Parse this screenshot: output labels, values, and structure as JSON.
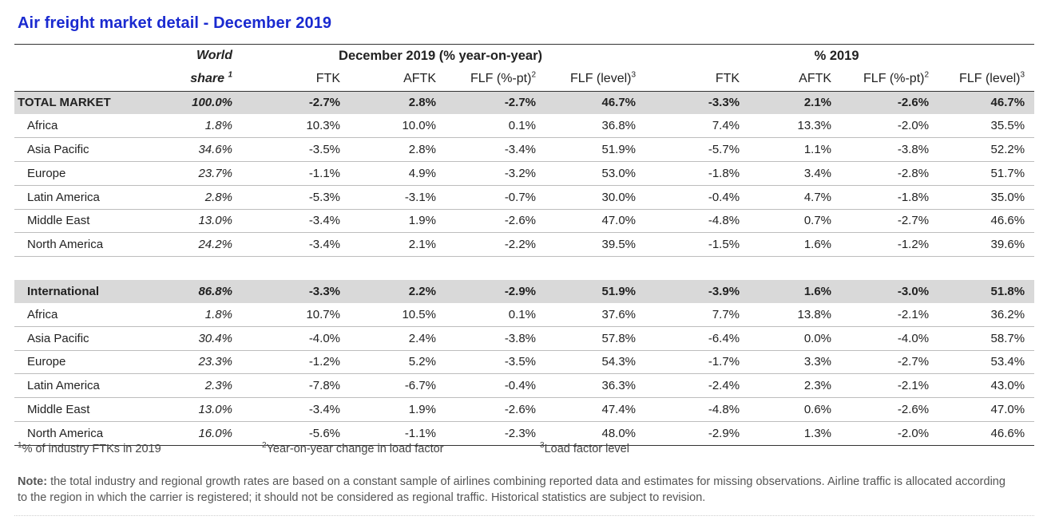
{
  "title": "Air freight market detail - December 2019",
  "header": {
    "world": "World",
    "share": "share",
    "share_sup": "1",
    "group1": "December 2019 (% year-on-year)",
    "group2": "% 2019",
    "cols": [
      "FTK",
      "AFTK",
      "FLF (%-pt)",
      "FLF (level)",
      "FTK",
      "AFTK",
      "FLF (%-pt)",
      "FLF (level)"
    ],
    "col_sups": [
      "",
      "",
      "2",
      "3",
      "",
      "",
      "2",
      "3"
    ]
  },
  "total": {
    "label": "TOTAL MARKET",
    "share": "100.0%",
    "v": [
      "-2.7%",
      "2.8%",
      "-2.7%",
      "46.7%",
      "-3.3%",
      "2.1%",
      "-2.6%",
      "46.7%"
    ]
  },
  "regions": [
    {
      "label": "Africa",
      "share": "1.8%",
      "v": [
        "10.3%",
        "10.0%",
        "0.1%",
        "36.8%",
        "7.4%",
        "13.3%",
        "-2.0%",
        "35.5%"
      ]
    },
    {
      "label": "Asia Pacific",
      "share": "34.6%",
      "v": [
        "-3.5%",
        "2.8%",
        "-3.4%",
        "51.9%",
        "-5.7%",
        "1.1%",
        "-3.8%",
        "52.2%"
      ]
    },
    {
      "label": "Europe",
      "share": "23.7%",
      "v": [
        "-1.1%",
        "4.9%",
        "-3.2%",
        "53.0%",
        "-1.8%",
        "3.4%",
        "-2.8%",
        "51.7%"
      ]
    },
    {
      "label": "Latin America",
      "share": "2.8%",
      "v": [
        "-5.3%",
        "-3.1%",
        "-0.7%",
        "30.0%",
        "-0.4%",
        "4.7%",
        "-1.8%",
        "35.0%"
      ]
    },
    {
      "label": "Middle East",
      "share": "13.0%",
      "v": [
        "-3.4%",
        "1.9%",
        "-2.6%",
        "47.0%",
        "-4.8%",
        "0.7%",
        "-2.7%",
        "46.6%"
      ]
    },
    {
      "label": "North America",
      "share": "24.2%",
      "v": [
        "-3.4%",
        "2.1%",
        "-2.2%",
        "39.5%",
        "-1.5%",
        "1.6%",
        "-1.2%",
        "39.6%"
      ]
    }
  ],
  "international": {
    "label": "International",
    "share": "86.8%",
    "v": [
      "-3.3%",
      "2.2%",
      "-2.9%",
      "51.9%",
      "-3.9%",
      "1.6%",
      "-3.0%",
      "51.8%"
    ]
  },
  "intl_regions": [
    {
      "label": "Africa",
      "share": "1.8%",
      "v": [
        "10.7%",
        "10.5%",
        "0.1%",
        "37.6%",
        "7.7%",
        "13.8%",
        "-2.1%",
        "36.2%"
      ]
    },
    {
      "label": "Asia Pacific",
      "share": "30.4%",
      "v": [
        "-4.0%",
        "2.4%",
        "-3.8%",
        "57.8%",
        "-6.4%",
        "0.0%",
        "-4.0%",
        "58.7%"
      ]
    },
    {
      "label": "Europe",
      "share": "23.3%",
      "v": [
        "-1.2%",
        "5.2%",
        "-3.5%",
        "54.3%",
        "-1.7%",
        "3.3%",
        "-2.7%",
        "53.4%"
      ]
    },
    {
      "label": "Latin America",
      "share": "2.3%",
      "v": [
        "-7.8%",
        "-6.7%",
        "-0.4%",
        "36.3%",
        "-2.4%",
        "2.3%",
        "-2.1%",
        "43.0%"
      ]
    },
    {
      "label": "Middle East",
      "share": "13.0%",
      "v": [
        "-3.4%",
        "1.9%",
        "-2.6%",
        "47.4%",
        "-4.8%",
        "0.6%",
        "-2.6%",
        "47.0%"
      ]
    },
    {
      "label": "North America",
      "share": "16.0%",
      "v": [
        "-5.6%",
        "-1.1%",
        "-2.3%",
        "48.0%",
        "-2.9%",
        "1.3%",
        "-2.0%",
        "46.6%"
      ]
    }
  ],
  "footnotes": [
    {
      "sup": "1",
      "text": "% of industry FTKs in 2019"
    },
    {
      "sup": "2",
      "text": "Year-on-year change in load factor"
    },
    {
      "sup": "3",
      "text": "Load factor level"
    }
  ],
  "note": {
    "label": "Note:",
    "text": " the total industry and regional growth rates are based on a constant sample of airlines combining reported data and estimates for missing observations. Airline traffic is allocated according to the region in which the carrier is registered; it should not be considered as regional traffic. Historical statistics are subject to revision."
  }
}
